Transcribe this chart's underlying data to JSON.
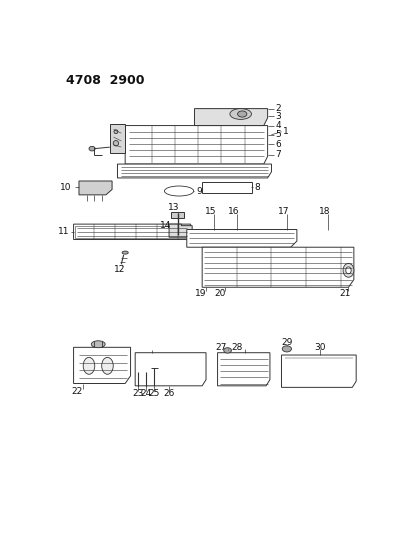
{
  "title": "4708  2900",
  "bg_color": "#ffffff",
  "lc": "#333333",
  "tc": "#111111",
  "figsize": [
    4.08,
    5.33
  ],
  "dpi": 100
}
